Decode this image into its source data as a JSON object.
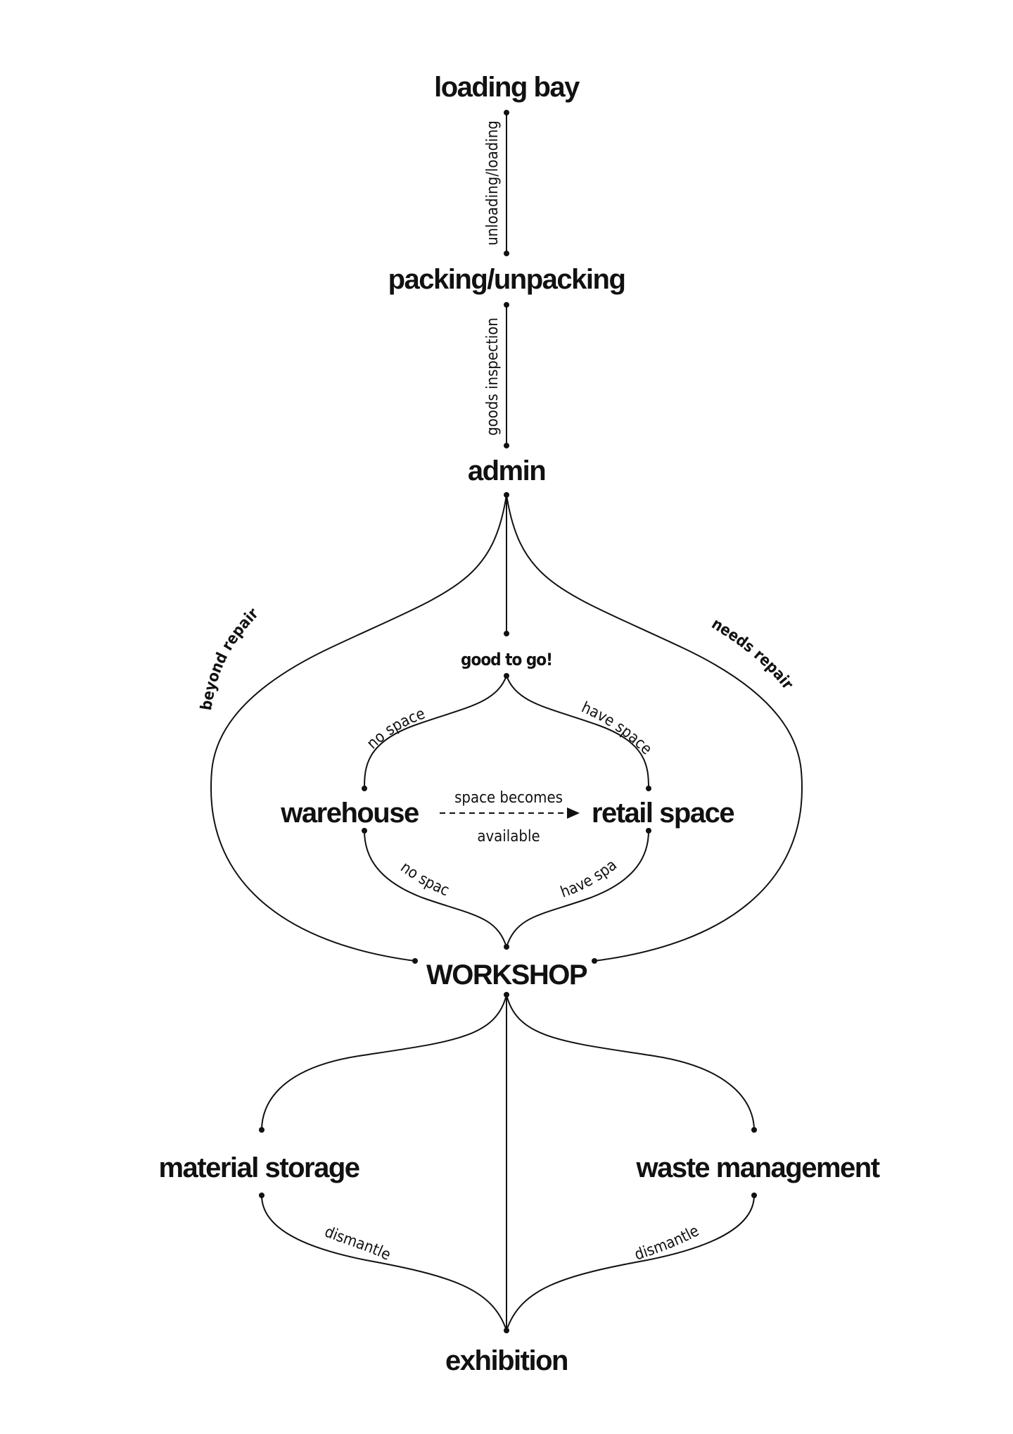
{
  "nodes": {
    "loading_bay": "loading bay",
    "packing": "packing/unpacking",
    "admin": "admin",
    "good_to_go": "good to go!",
    "warehouse": "warehouse",
    "retail_space": "retail space",
    "workshop": "WORKSHOP",
    "material_storage": "material storage",
    "waste_management": "waste management",
    "exhibition": "exhibition"
  },
  "edges": {
    "unloading": "unloading/loading",
    "goods_inspection": "goods inspection",
    "beyond_repair": "beyond repair",
    "needs_repair": "needs repair",
    "no_space_top": "no space",
    "have_space_top": "have space",
    "space_becomes": "space becomes",
    "available": "available",
    "no_space_bottom": "no space",
    "have_space_bottom": "have space",
    "dismantled_left": "dismantled",
    "dismantled_right": "dismantled"
  }
}
